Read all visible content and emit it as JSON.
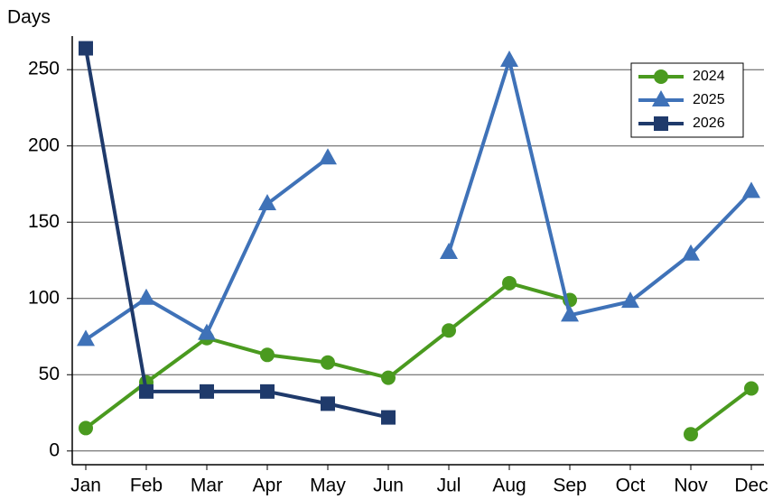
{
  "chart_data": {
    "type": "line",
    "ylabel": "Days",
    "categories": [
      "Jan",
      "Feb",
      "Mar",
      "Apr",
      "May",
      "Jun",
      "Jul",
      "Aug",
      "Sep",
      "Oct",
      "Nov",
      "Dec"
    ],
    "series": [
      {
        "name": "2024",
        "color": "#4a9a1f",
        "marker": "circle",
        "values": [
          15,
          45,
          74,
          63,
          58,
          48,
          79,
          110,
          99,
          null,
          11,
          41
        ]
      },
      {
        "name": "2025",
        "color": "#3f72b8",
        "marker": "triangle",
        "values": [
          73,
          100,
          77,
          162,
          192,
          null,
          130,
          256,
          89,
          98,
          129,
          170
        ]
      },
      {
        "name": "2026",
        "color": "#1f3a6b",
        "marker": "square",
        "values": [
          264,
          39,
          39,
          39,
          31,
          22,
          null,
          null,
          null,
          null,
          null,
          null
        ]
      }
    ],
    "ylim": [
      -9,
      272
    ],
    "yticks": [
      0,
      50,
      100,
      150,
      200,
      250
    ],
    "grid": true,
    "legend": "upper right"
  }
}
